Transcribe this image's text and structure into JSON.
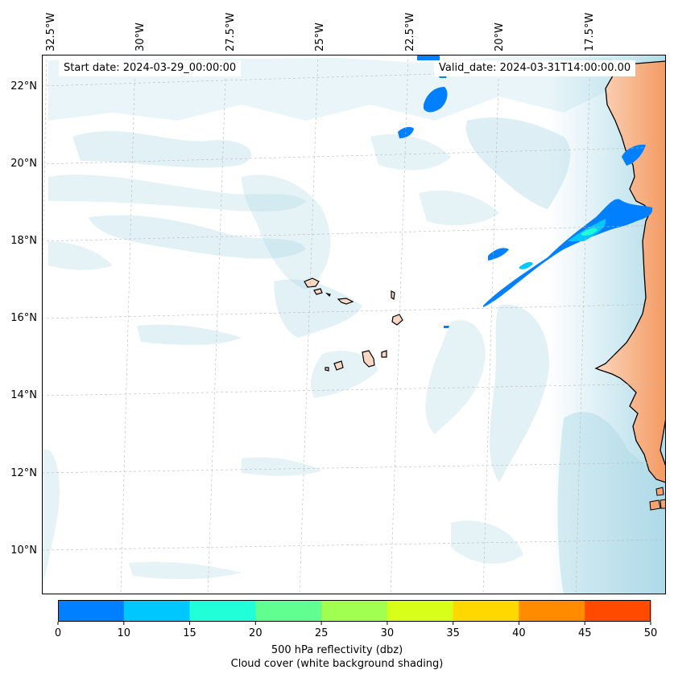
{
  "map": {
    "start_date_label": "Start date: 2024-03-29_00:00:00",
    "valid_date_label": "Valid_date: 2024-03-31T14:00:00.00",
    "lon_labels": [
      "32.5°W",
      "30°W",
      "27.5°W",
      "25°W",
      "22.5°W",
      "20°W",
      "17.5°W"
    ],
    "lat_labels": [
      "22°N",
      "20°N",
      "18°N",
      "16°N",
      "14°N",
      "12°N",
      "10°N"
    ],
    "land_color": "#f6a36f",
    "cloud_color": "#a9d8e6",
    "reflectivity_low_color": "#0080ff"
  },
  "colorbar": {
    "title": "500 hPa reflectivity (dbz)",
    "subtitle": "Cloud cover (white background shading)",
    "tick_labels": [
      "0",
      "10",
      "15",
      "20",
      "25",
      "30",
      "35",
      "40",
      "45",
      "50"
    ],
    "colors": [
      "#0080ff",
      "#00c8ff",
      "#20ffd8",
      "#60ff90",
      "#a0ff50",
      "#d8ff18",
      "#ffd800",
      "#ff8c00",
      "#ff4a00"
    ]
  }
}
